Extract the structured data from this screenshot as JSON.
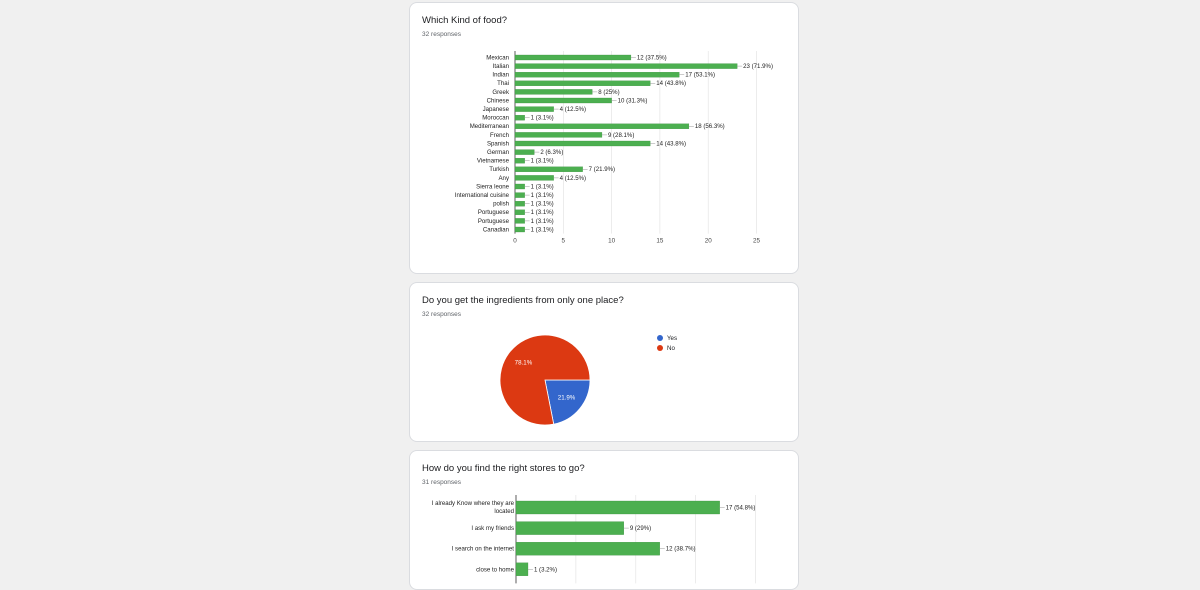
{
  "cards": [
    {
      "title": "Which Kind of food?",
      "responses": "32 responses"
    },
    {
      "title": "Do you get the ingredients from only one place?",
      "responses": "32 responses"
    },
    {
      "title": "How do you find the right stores to go?",
      "responses": "31 responses"
    }
  ],
  "colors": {
    "bar": "#4caf50",
    "bar_stroke": "#3b8f3f",
    "yes": "#3366cc",
    "no": "#dc3912"
  },
  "chart_data": [
    {
      "type": "bar",
      "orientation": "horizontal",
      "title": "Which Kind of food?",
      "categories": [
        "Mexican",
        "Italian",
        "Indian",
        "Thai",
        "Greek",
        "Chinese",
        "Japanese",
        "Moroccan",
        "Mediterranean",
        "French",
        "Spanish",
        "German",
        "Vietnamese",
        "Turkish",
        "Any",
        "Sierra leone",
        "International cuisine",
        "polish",
        "Portuguese",
        "Portuguese",
        "Canadian"
      ],
      "values": [
        12,
        23,
        17,
        14,
        8,
        10,
        4,
        1,
        18,
        9,
        14,
        2,
        1,
        7,
        4,
        1,
        1,
        1,
        1,
        1,
        1
      ],
      "data_labels": [
        "12 (37.5%)",
        "23 (71.9%)",
        "17 (53.1%)",
        "14 (43.8%)",
        "8 (25%)",
        "10 (31.3%)",
        "4 (12.5%)",
        "1 (3.1%)",
        "18 (56.3%)",
        "9 (28.1%)",
        "14 (43.8%)",
        "2 (6.3%)",
        "1 (3.1%)",
        "7 (21.9%)",
        "4 (12.5%)",
        "1 (3.1%)",
        "1 (3.1%)",
        "1 (3.1%)",
        "1 (3.1%)",
        "1 (3.1%)",
        "1 (3.1%)"
      ],
      "xlim": [
        0,
        25
      ],
      "xticks": [
        "0",
        "5",
        "10",
        "15",
        "20",
        "25"
      ],
      "grid": true
    },
    {
      "type": "pie",
      "title": "Do you get the ingredients from only one place?",
      "labels": [
        "Yes",
        "No"
      ],
      "values": [
        21.9,
        78.1
      ],
      "slice_labels": [
        "21.9%",
        "78.1%"
      ],
      "legend": "right"
    },
    {
      "type": "bar",
      "orientation": "horizontal",
      "title": "How do you find the right stores to go?",
      "categories": [
        [
          "I already Know where they are",
          "located"
        ],
        [
          "I ask my friends"
        ],
        [
          "I search on the internet"
        ],
        [
          "close to home"
        ]
      ],
      "values": [
        17,
        9,
        12,
        1
      ],
      "data_labels": [
        "17 (54.8%)",
        "9 (29%)",
        "12 (38.7%)",
        "1 (3.2%)"
      ],
      "grid": true
    }
  ]
}
